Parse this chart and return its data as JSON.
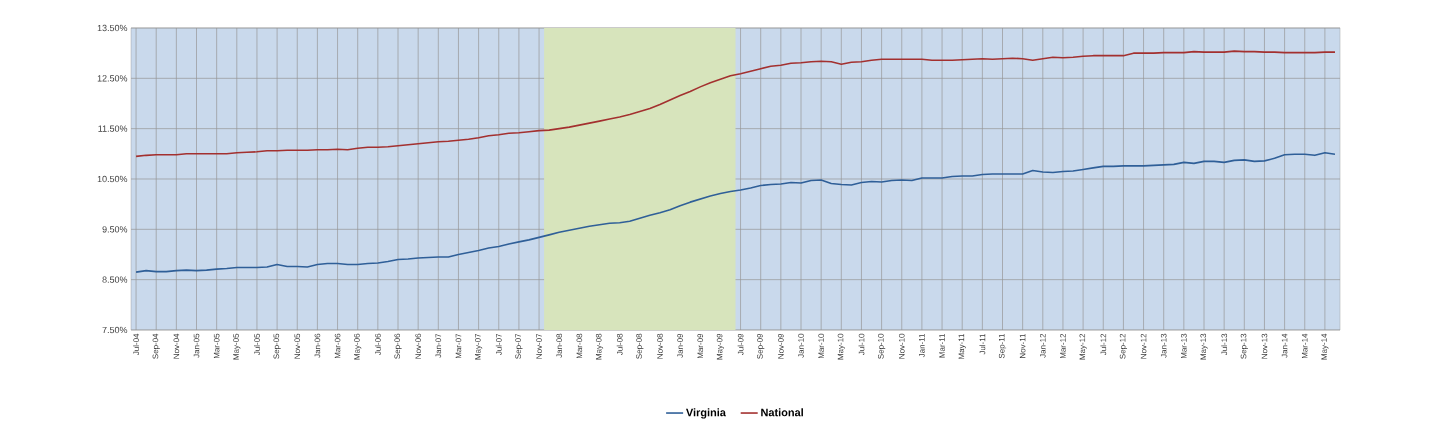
{
  "chart_data": {
    "type": "line",
    "x": [
      "2004-07",
      "2004-08",
      "2004-09",
      "2004-10",
      "2004-11",
      "2004-12",
      "2005-01",
      "2005-02",
      "2005-03",
      "2005-04",
      "2005-05",
      "2005-06",
      "2005-07",
      "2005-08",
      "2005-09",
      "2005-10",
      "2005-11",
      "2005-12",
      "2006-01",
      "2006-02",
      "2006-03",
      "2006-04",
      "2006-05",
      "2006-06",
      "2006-07",
      "2006-08",
      "2006-09",
      "2006-10",
      "2006-11",
      "2006-12",
      "2007-01",
      "2007-02",
      "2007-03",
      "2007-04",
      "2007-05",
      "2007-06",
      "2007-07",
      "2007-08",
      "2007-09",
      "2007-10",
      "2007-11",
      "2007-12",
      "2008-01",
      "2008-02",
      "2008-03",
      "2008-04",
      "2008-05",
      "2008-06",
      "2008-07",
      "2008-08",
      "2008-09",
      "2008-10",
      "2008-11",
      "2008-12",
      "2009-01",
      "2009-02",
      "2009-03",
      "2009-04",
      "2009-05",
      "2009-06",
      "2009-07",
      "2009-08",
      "2009-09",
      "2009-10",
      "2009-11",
      "2009-12",
      "2010-01",
      "2010-02",
      "2010-03",
      "2010-04",
      "2010-05",
      "2010-06",
      "2010-07",
      "2010-08",
      "2010-09",
      "2010-10",
      "2010-11",
      "2010-12",
      "2011-01",
      "2011-02",
      "2011-03",
      "2011-04",
      "2011-05",
      "2011-06",
      "2011-07",
      "2011-08",
      "2011-09",
      "2011-10",
      "2011-11",
      "2011-12",
      "2012-01",
      "2012-02",
      "2012-03",
      "2012-04",
      "2012-05",
      "2012-06",
      "2012-07",
      "2012-08",
      "2012-09",
      "2012-10",
      "2012-11",
      "2012-12",
      "2013-01",
      "2013-02",
      "2013-03",
      "2013-04",
      "2013-05",
      "2013-06",
      "2013-07",
      "2013-08",
      "2013-09",
      "2013-10",
      "2013-11",
      "2013-12",
      "2014-01",
      "2014-02",
      "2014-03",
      "2014-04",
      "2014-05",
      "2014-06"
    ],
    "series": [
      {
        "name": "Virginia",
        "color": "#2f5f98",
        "values": [
          8.65,
          8.68,
          8.66,
          8.66,
          8.68,
          8.69,
          8.68,
          8.69,
          8.71,
          8.72,
          8.74,
          8.74,
          8.74,
          8.75,
          8.8,
          8.76,
          8.76,
          8.75,
          8.8,
          8.82,
          8.82,
          8.8,
          8.8,
          8.82,
          8.83,
          8.86,
          8.9,
          8.91,
          8.93,
          8.94,
          8.95,
          8.95,
          9.0,
          9.04,
          9.08,
          9.13,
          9.16,
          9.21,
          9.25,
          9.29,
          9.34,
          9.39,
          9.44,
          9.48,
          9.52,
          9.56,
          9.59,
          9.62,
          9.63,
          9.66,
          9.72,
          9.78,
          9.83,
          9.89,
          9.97,
          10.04,
          10.1,
          10.16,
          10.21,
          10.25,
          10.28,
          10.32,
          10.37,
          10.39,
          10.4,
          10.43,
          10.42,
          10.47,
          10.48,
          10.41,
          10.39,
          10.38,
          10.43,
          10.45,
          10.44,
          10.47,
          10.48,
          10.47,
          10.52,
          10.52,
          10.52,
          10.55,
          10.56,
          10.56,
          10.59,
          10.6,
          10.6,
          10.6,
          10.6,
          10.67,
          10.64,
          10.63,
          10.65,
          10.66,
          10.69,
          10.72,
          10.75,
          10.75,
          10.76,
          10.76,
          10.76,
          10.77,
          10.78,
          10.79,
          10.83,
          10.81,
          10.85,
          10.85,
          10.83,
          10.87,
          10.88,
          10.85,
          10.86,
          10.91,
          10.98,
          10.99,
          10.99,
          10.97,
          11.02,
          10.99
        ]
      },
      {
        "name": "National",
        "color": "#a3302f",
        "values": [
          10.95,
          10.97,
          10.98,
          10.98,
          10.98,
          11.0,
          11.0,
          11.0,
          11.0,
          11.0,
          11.02,
          11.03,
          11.04,
          11.06,
          11.06,
          11.07,
          11.07,
          11.07,
          11.08,
          11.08,
          11.09,
          11.08,
          11.11,
          11.13,
          11.13,
          11.14,
          11.16,
          11.18,
          11.2,
          11.22,
          11.24,
          11.25,
          11.27,
          11.29,
          11.32,
          11.36,
          11.38,
          11.41,
          11.42,
          11.44,
          11.46,
          11.47,
          11.5,
          11.53,
          11.57,
          11.61,
          11.65,
          11.69,
          11.73,
          11.78,
          11.84,
          11.9,
          11.98,
          12.07,
          12.16,
          12.24,
          12.33,
          12.41,
          12.48,
          12.55,
          12.59,
          12.64,
          12.69,
          12.74,
          12.76,
          12.8,
          12.81,
          12.83,
          12.84,
          12.83,
          12.78,
          12.82,
          12.83,
          12.86,
          12.88,
          12.88,
          12.88,
          12.88,
          12.88,
          12.86,
          12.86,
          12.86,
          12.87,
          12.88,
          12.89,
          12.88,
          12.89,
          12.9,
          12.89,
          12.86,
          12.89,
          12.92,
          12.91,
          12.92,
          12.94,
          12.95,
          12.95,
          12.95,
          12.95,
          13.0,
          13.0,
          13.0,
          13.01,
          13.01,
          13.01,
          13.03,
          13.02,
          13.02,
          13.02,
          13.04,
          13.03,
          13.03,
          13.02,
          13.02,
          13.01,
          13.01,
          13.01,
          13.01,
          13.02,
          13.02
        ]
      }
    ],
    "xlim": [
      "2004-06-16",
      "2014-06-16"
    ],
    "xticks": [
      {
        "value": "2004-07",
        "label": "Jul-04"
      },
      {
        "value": "2004-09",
        "label": "Sep-04"
      },
      {
        "value": "2004-11",
        "label": "Nov-04"
      },
      {
        "value": "2005-01",
        "label": "Jan-05"
      },
      {
        "value": "2005-03",
        "label": "Mar-05"
      },
      {
        "value": "2005-05",
        "label": "May-05"
      },
      {
        "value": "2005-07",
        "label": "Jul-05"
      },
      {
        "value": "2005-09",
        "label": "Sep-05"
      },
      {
        "value": "2005-11",
        "label": "Nov-05"
      },
      {
        "value": "2006-01",
        "label": "Jan-06"
      },
      {
        "value": "2006-03",
        "label": "Mar-06"
      },
      {
        "value": "2006-05",
        "label": "May-06"
      },
      {
        "value": "2006-07",
        "label": "Jul-06"
      },
      {
        "value": "2006-09",
        "label": "Sep-06"
      },
      {
        "value": "2006-11",
        "label": "Nov-06"
      },
      {
        "value": "2007-01",
        "label": "Jan-07"
      },
      {
        "value": "2007-03",
        "label": "Mar-07"
      },
      {
        "value": "2007-05",
        "label": "May-07"
      },
      {
        "value": "2007-07",
        "label": "Jul-07"
      },
      {
        "value": "2007-09",
        "label": "Sep-07"
      },
      {
        "value": "2007-11",
        "label": "Nov-07"
      },
      {
        "value": "2008-01",
        "label": "Jan-08"
      },
      {
        "value": "2008-03",
        "label": "Mar-08"
      },
      {
        "value": "2008-05",
        "label": "May-08"
      },
      {
        "value": "2008-07",
        "label": "Jul-08"
      },
      {
        "value": "2008-09",
        "label": "Sep-08"
      },
      {
        "value": "2008-11",
        "label": "Nov-08"
      },
      {
        "value": "2009-01",
        "label": "Jan-09"
      },
      {
        "value": "2009-03",
        "label": "Mar-09"
      },
      {
        "value": "2009-05",
        "label": "May-09"
      },
      {
        "value": "2009-07",
        "label": "Jul-09"
      },
      {
        "value": "2009-09",
        "label": "Sep-09"
      },
      {
        "value": "2009-11",
        "label": "Nov-09"
      },
      {
        "value": "2010-01",
        "label": "Jan-10"
      },
      {
        "value": "2010-03",
        "label": "Mar-10"
      },
      {
        "value": "2010-05",
        "label": "May-10"
      },
      {
        "value": "2010-07",
        "label": "Jul-10"
      },
      {
        "value": "2010-09",
        "label": "Sep-10"
      },
      {
        "value": "2010-11",
        "label": "Nov-10"
      },
      {
        "value": "2011-01",
        "label": "Jan-11"
      },
      {
        "value": "2011-03",
        "label": "Mar-11"
      },
      {
        "value": "2011-05",
        "label": "May-11"
      },
      {
        "value": "2011-07",
        "label": "Jul-11"
      },
      {
        "value": "2011-09",
        "label": "Sep-11"
      },
      {
        "value": "2011-11",
        "label": "Nov-11"
      },
      {
        "value": "2012-01",
        "label": "Jan-12"
      },
      {
        "value": "2012-03",
        "label": "Mar-12"
      },
      {
        "value": "2012-05",
        "label": "May-12"
      },
      {
        "value": "2012-07",
        "label": "Jul-12"
      },
      {
        "value": "2012-09",
        "label": "Sep-12"
      },
      {
        "value": "2012-11",
        "label": "Nov-12"
      },
      {
        "value": "2013-01",
        "label": "Jan-13"
      },
      {
        "value": "2013-03",
        "label": "Mar-13"
      },
      {
        "value": "2013-05",
        "label": "May-13"
      },
      {
        "value": "2013-07",
        "label": "Jul-13"
      },
      {
        "value": "2013-09",
        "label": "Sep-13"
      },
      {
        "value": "2013-11",
        "label": "Nov-13"
      },
      {
        "value": "2014-01",
        "label": "Jan-14"
      },
      {
        "value": "2014-03",
        "label": "Mar-14"
      },
      {
        "value": "2014-05",
        "label": "May-14"
      }
    ],
    "ylim": [
      7.5,
      13.5
    ],
    "yticks": [
      {
        "value": 7.5,
        "label": "7.50%"
      },
      {
        "value": 8.5,
        "label": "8.50%"
      },
      {
        "value": 9.5,
        "label": "9.50%"
      },
      {
        "value": 10.5,
        "label": "10.50%"
      },
      {
        "value": 11.5,
        "label": "11.50%"
      },
      {
        "value": 12.5,
        "label": "12.50%"
      },
      {
        "value": 13.5,
        "label": "13.50%"
      }
    ],
    "bands": [
      {
        "axis": "x",
        "from": "2007-11-16",
        "to": "2009-06-16",
        "color": "#d7e4bc"
      }
    ],
    "grid": true,
    "legend": "bottom",
    "marker": "none",
    "line_style": "solid"
  }
}
